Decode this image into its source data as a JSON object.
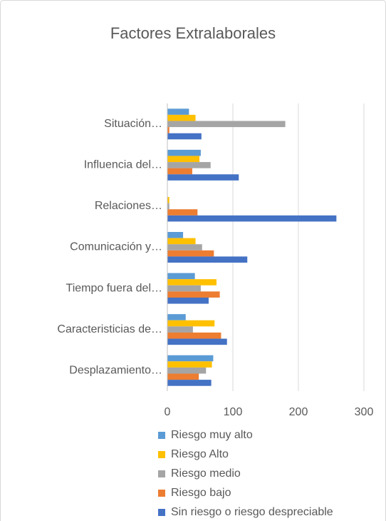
{
  "chart_data": {
    "type": "bar",
    "orientation": "horizontal",
    "title": "Factores Extralaborales",
    "categories": [
      "Situación…",
      "Influencia del…",
      "Relaciones…",
      "Comunicación y…",
      "Tiempo fuera del…",
      "Caracteristicias de…",
      "Desplazamiento…"
    ],
    "series": [
      {
        "name": "Riesgo muy alto",
        "color": "#5b9bd5",
        "values": [
          33,
          51,
          0,
          24,
          42,
          28,
          70
        ]
      },
      {
        "name": "Riesgo Alto",
        "color": "#ffc000",
        "values": [
          43,
          49,
          3,
          43,
          75,
          72,
          68
        ]
      },
      {
        "name": "Riesgo medio",
        "color": "#a5a5a5",
        "values": [
          180,
          66,
          3,
          53,
          51,
          39,
          59
        ]
      },
      {
        "name": "Riesgo bajo",
        "color": "#ed7d31",
        "values": [
          3,
          38,
          46,
          71,
          80,
          82,
          48
        ]
      },
      {
        "name": "Sin riesgo o riesgo despreciable",
        "color": "#4472c4",
        "values": [
          52,
          109,
          258,
          122,
          63,
          91,
          67
        ]
      }
    ],
    "xlim": [
      0,
      300
    ],
    "xticks": [
      0,
      100,
      200,
      300
    ],
    "grid": true,
    "legend": "bottom"
  }
}
